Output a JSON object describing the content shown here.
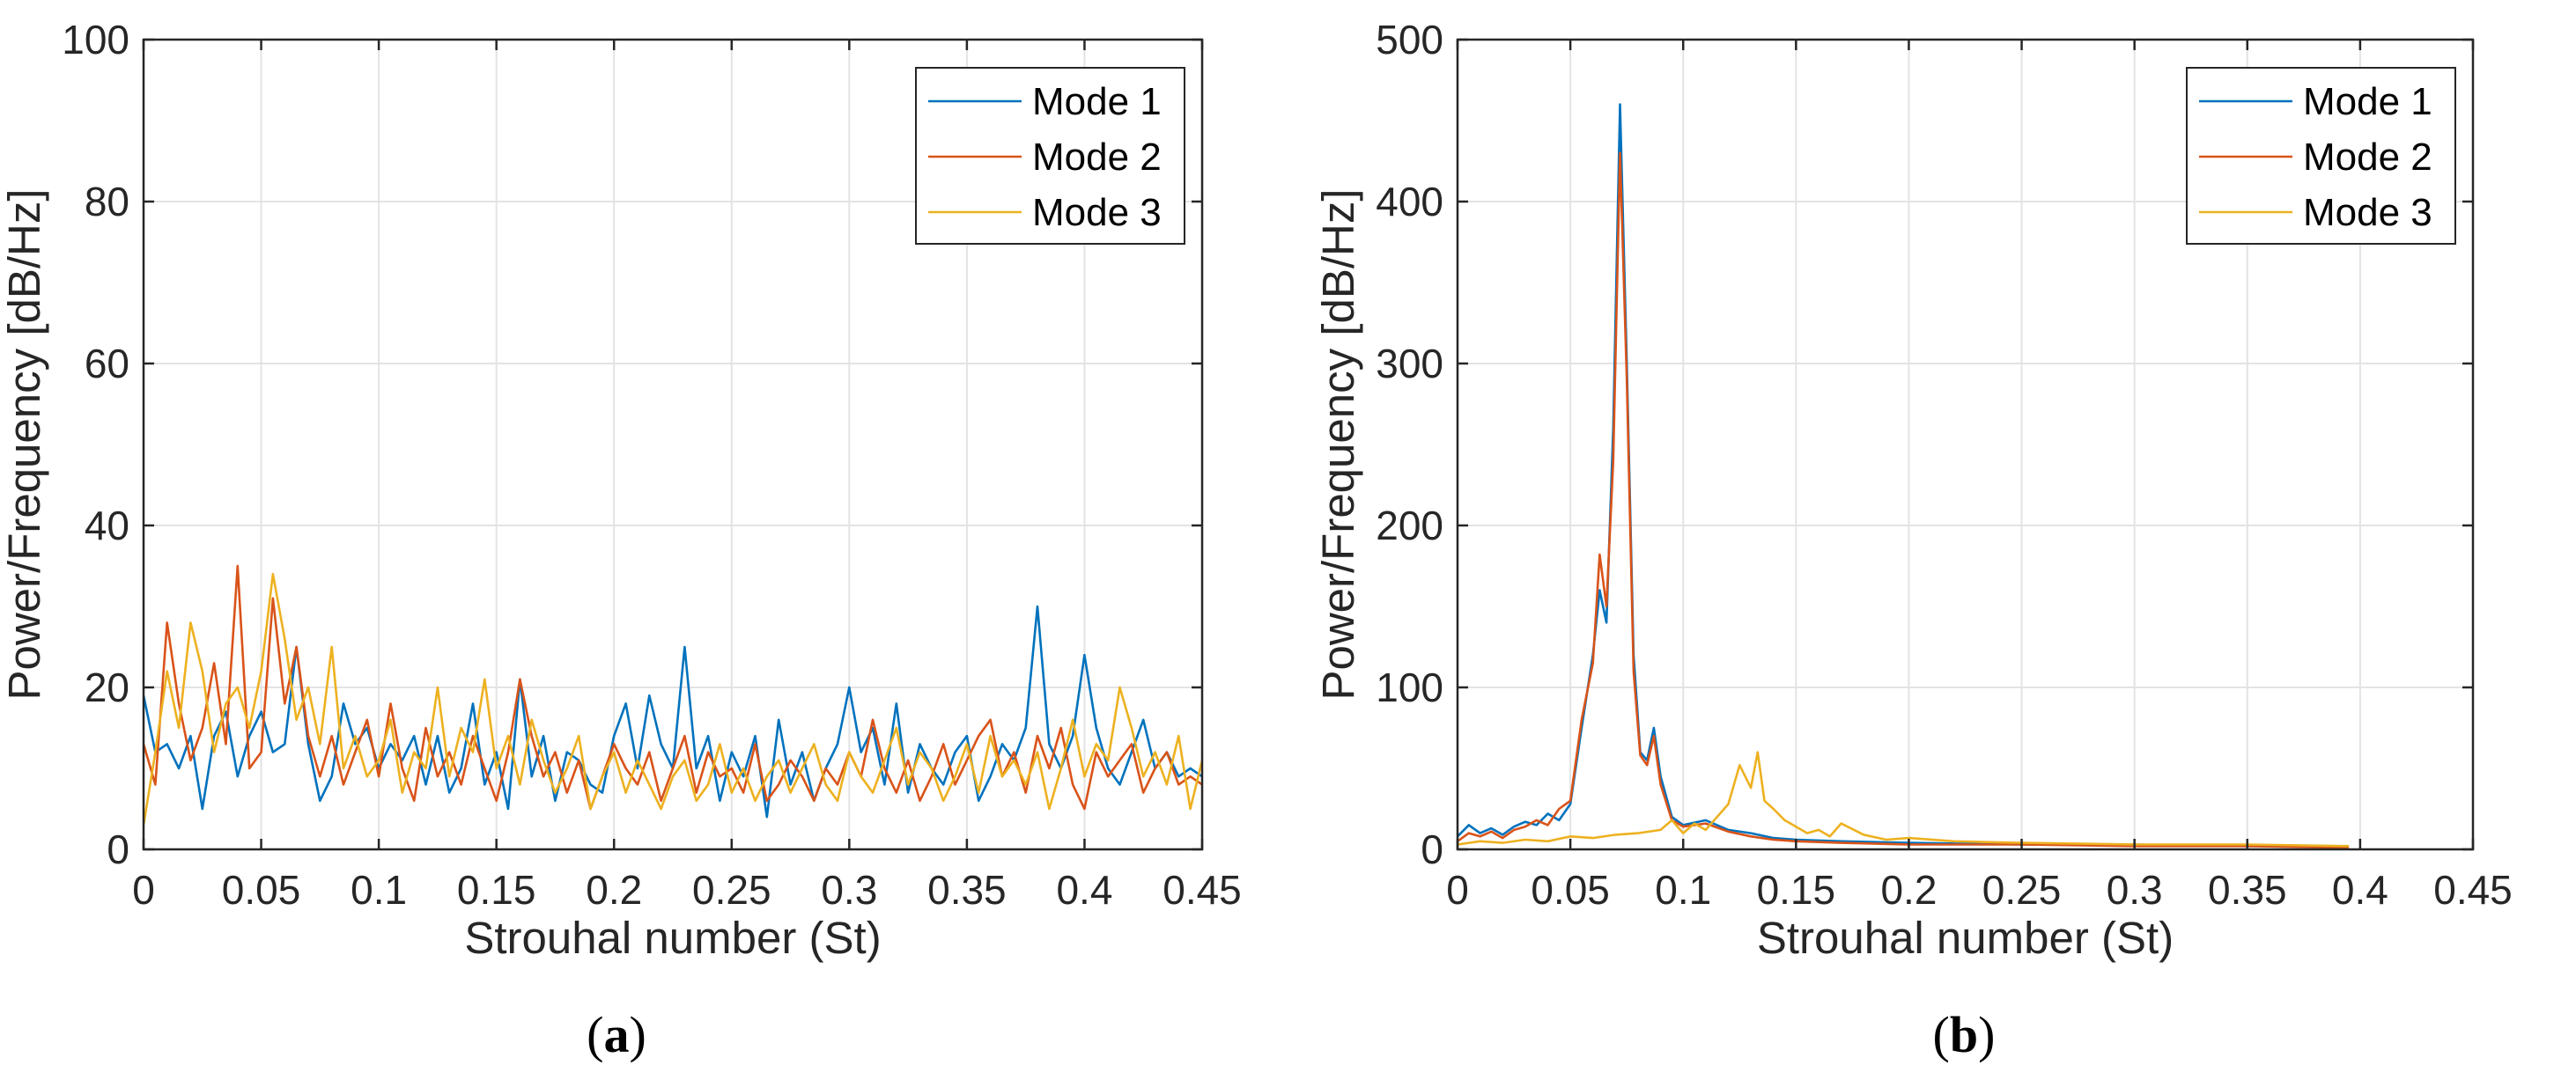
{
  "colors": {
    "mode1": "#0072BD",
    "mode2": "#D95319",
    "mode3": "#EDB120"
  },
  "chart_data": [
    {
      "type": "line",
      "caption_letter": "a",
      "xlabel": "Strouhal number (St)",
      "ylabel": "Power/Frequency [dB/Hz]",
      "xlim": [
        0,
        0.45
      ],
      "ylim": [
        0,
        100
      ],
      "xticks": [
        0,
        0.05,
        0.1,
        0.15,
        0.2,
        0.25,
        0.3,
        0.35,
        0.4,
        0.45
      ],
      "xtick_labels": [
        "0",
        "0.05",
        "0.1",
        "0.15",
        "0.2",
        "0.25",
        "0.3",
        "0.35",
        "0.4",
        "0.45"
      ],
      "yticks": [
        0,
        20,
        40,
        60,
        80,
        100
      ],
      "ytick_labels": [
        "0",
        "20",
        "40",
        "60",
        "80",
        "100"
      ],
      "grid": true,
      "legend_position": "top-right",
      "series": [
        {
          "name": "Mode 1",
          "color_key": "mode1",
          "x": [
            0,
            0.005,
            0.01,
            0.015,
            0.02,
            0.025,
            0.03,
            0.035,
            0.04,
            0.045,
            0.05,
            0.055,
            0.06,
            0.065,
            0.07,
            0.075,
            0.08,
            0.085,
            0.09,
            0.095,
            0.1,
            0.105,
            0.11,
            0.115,
            0.12,
            0.125,
            0.13,
            0.135,
            0.14,
            0.145,
            0.15,
            0.155,
            0.16,
            0.165,
            0.17,
            0.175,
            0.18,
            0.185,
            0.19,
            0.195,
            0.2,
            0.205,
            0.21,
            0.215,
            0.22,
            0.225,
            0.23,
            0.235,
            0.24,
            0.245,
            0.25,
            0.255,
            0.26,
            0.265,
            0.27,
            0.275,
            0.28,
            0.285,
            0.29,
            0.295,
            0.3,
            0.305,
            0.31,
            0.315,
            0.32,
            0.325,
            0.33,
            0.335,
            0.34,
            0.345,
            0.35,
            0.355,
            0.36,
            0.365,
            0.37,
            0.375,
            0.38,
            0.385,
            0.39,
            0.395,
            0.4,
            0.405,
            0.41,
            0.415,
            0.42,
            0.425,
            0.43,
            0.435,
            0.44,
            0.445,
            0.45
          ],
          "y": [
            19,
            12,
            13,
            10,
            14,
            5,
            14,
            17,
            9,
            14,
            17,
            12,
            13,
            25,
            13,
            6,
            9,
            18,
            13,
            15,
            10,
            13,
            11,
            14,
            8,
            14,
            7,
            10,
            18,
            8,
            12,
            5,
            21,
            9,
            14,
            6,
            12,
            11,
            8,
            7,
            14,
            18,
            10,
            19,
            13,
            10,
            25,
            10,
            14,
            6,
            12,
            9,
            14,
            4,
            16,
            8,
            12,
            6,
            10,
            13,
            20,
            12,
            15,
            8,
            18,
            7,
            13,
            10,
            8,
            12,
            14,
            6,
            9,
            13,
            11,
            15,
            30,
            13,
            10,
            14,
            24,
            15,
            10,
            8,
            12,
            16,
            10,
            12,
            9,
            10,
            9
          ]
        },
        {
          "name": "Mode 2",
          "color_key": "mode2",
          "x": [
            0,
            0.005,
            0.01,
            0.015,
            0.02,
            0.025,
            0.03,
            0.035,
            0.04,
            0.045,
            0.05,
            0.055,
            0.06,
            0.065,
            0.07,
            0.075,
            0.08,
            0.085,
            0.09,
            0.095,
            0.1,
            0.105,
            0.11,
            0.115,
            0.12,
            0.125,
            0.13,
            0.135,
            0.14,
            0.145,
            0.15,
            0.155,
            0.16,
            0.165,
            0.17,
            0.175,
            0.18,
            0.185,
            0.19,
            0.195,
            0.2,
            0.205,
            0.21,
            0.215,
            0.22,
            0.225,
            0.23,
            0.235,
            0.24,
            0.245,
            0.25,
            0.255,
            0.26,
            0.265,
            0.27,
            0.275,
            0.28,
            0.285,
            0.29,
            0.295,
            0.3,
            0.305,
            0.31,
            0.315,
            0.32,
            0.325,
            0.33,
            0.335,
            0.34,
            0.345,
            0.35,
            0.355,
            0.36,
            0.365,
            0.37,
            0.375,
            0.38,
            0.385,
            0.39,
            0.395,
            0.4,
            0.405,
            0.41,
            0.415,
            0.42,
            0.425,
            0.43,
            0.435,
            0.44,
            0.445,
            0.45
          ],
          "y": [
            13,
            8,
            28,
            18,
            11,
            15,
            23,
            13,
            35,
            10,
            12,
            31,
            18,
            25,
            14,
            9,
            14,
            8,
            12,
            16,
            9,
            18,
            10,
            6,
            15,
            9,
            12,
            8,
            14,
            10,
            6,
            12,
            21,
            14,
            9,
            12,
            7,
            11,
            5,
            9,
            13,
            10,
            8,
            12,
            6,
            10,
            14,
            7,
            12,
            9,
            10,
            7,
            13,
            6,
            8,
            11,
            9,
            6,
            10,
            8,
            12,
            9,
            16,
            10,
            7,
            11,
            6,
            9,
            13,
            8,
            11,
            14,
            16,
            9,
            12,
            7,
            14,
            10,
            15,
            8,
            5,
            12,
            9,
            11,
            13,
            7,
            10,
            12,
            8,
            9,
            8
          ]
        },
        {
          "name": "Mode 3",
          "color_key": "mode3",
          "x": [
            0,
            0.005,
            0.01,
            0.015,
            0.02,
            0.025,
            0.03,
            0.035,
            0.04,
            0.045,
            0.05,
            0.055,
            0.06,
            0.065,
            0.07,
            0.075,
            0.08,
            0.085,
            0.09,
            0.095,
            0.1,
            0.105,
            0.11,
            0.115,
            0.12,
            0.125,
            0.13,
            0.135,
            0.14,
            0.145,
            0.15,
            0.155,
            0.16,
            0.165,
            0.17,
            0.175,
            0.18,
            0.185,
            0.19,
            0.195,
            0.2,
            0.205,
            0.21,
            0.215,
            0.22,
            0.225,
            0.23,
            0.235,
            0.24,
            0.245,
            0.25,
            0.255,
            0.26,
            0.265,
            0.27,
            0.275,
            0.28,
            0.285,
            0.29,
            0.295,
            0.3,
            0.305,
            0.31,
            0.315,
            0.32,
            0.325,
            0.33,
            0.335,
            0.34,
            0.345,
            0.35,
            0.355,
            0.36,
            0.365,
            0.37,
            0.375,
            0.38,
            0.385,
            0.39,
            0.395,
            0.4,
            0.405,
            0.41,
            0.415,
            0.42,
            0.425,
            0.43,
            0.435,
            0.44,
            0.445,
            0.45
          ],
          "y": [
            3,
            12,
            22,
            15,
            28,
            22,
            12,
            18,
            20,
            15,
            22,
            34,
            26,
            16,
            20,
            13,
            25,
            10,
            14,
            9,
            11,
            16,
            7,
            12,
            10,
            20,
            9,
            15,
            12,
            21,
            10,
            14,
            8,
            16,
            11,
            7,
            10,
            14,
            5,
            9,
            12,
            7,
            11,
            8,
            5,
            9,
            11,
            6,
            8,
            13,
            7,
            10,
            6,
            9,
            11,
            7,
            10,
            13,
            8,
            6,
            12,
            9,
            7,
            11,
            15,
            8,
            12,
            10,
            6,
            9,
            13,
            7,
            14,
            9,
            11,
            8,
            12,
            5,
            10,
            16,
            9,
            13,
            11,
            20,
            15,
            9,
            12,
            8,
            14,
            5,
            11
          ]
        }
      ]
    },
    {
      "type": "line",
      "caption_letter": "b",
      "xlabel": "Strouhal number (St)",
      "ylabel": "Power/Frequency [dB/Hz]",
      "xlim": [
        0,
        0.45
      ],
      "ylim": [
        0,
        500
      ],
      "xticks": [
        0,
        0.05,
        0.1,
        0.15,
        0.2,
        0.25,
        0.3,
        0.35,
        0.4,
        0.45
      ],
      "xtick_labels": [
        "0",
        "0.05",
        "0.1",
        "0.15",
        "0.2",
        "0.25",
        "0.3",
        "0.35",
        "0.4",
        "0.45"
      ],
      "yticks": [
        0,
        100,
        200,
        300,
        400,
        500
      ],
      "ytick_labels": [
        "0",
        "100",
        "200",
        "300",
        "400",
        "500"
      ],
      "grid": true,
      "legend_position": "top-right",
      "series": [
        {
          "name": "Mode 1",
          "color_key": "mode1",
          "x": [
            0,
            0.005,
            0.01,
            0.015,
            0.02,
            0.025,
            0.03,
            0.035,
            0.04,
            0.045,
            0.05,
            0.055,
            0.06,
            0.063,
            0.066,
            0.069,
            0.072,
            0.075,
            0.078,
            0.081,
            0.084,
            0.087,
            0.09,
            0.095,
            0.1,
            0.11,
            0.12,
            0.13,
            0.14,
            0.15,
            0.17,
            0.2,
            0.25,
            0.3,
            0.35,
            0.395
          ],
          "y": [
            8,
            15,
            10,
            13,
            9,
            14,
            17,
            15,
            22,
            18,
            28,
            75,
            120,
            160,
            140,
            260,
            460,
            300,
            120,
            60,
            55,
            75,
            45,
            20,
            15,
            18,
            12,
            10,
            7,
            6,
            5,
            4,
            3,
            3,
            2,
            2
          ]
        },
        {
          "name": "Mode 2",
          "color_key": "mode2",
          "x": [
            0,
            0.005,
            0.01,
            0.015,
            0.02,
            0.025,
            0.03,
            0.035,
            0.04,
            0.045,
            0.05,
            0.055,
            0.06,
            0.063,
            0.066,
            0.069,
            0.072,
            0.075,
            0.078,
            0.081,
            0.084,
            0.087,
            0.09,
            0.095,
            0.1,
            0.11,
            0.12,
            0.13,
            0.14,
            0.15,
            0.17,
            0.2,
            0.25,
            0.3,
            0.35,
            0.395
          ],
          "y": [
            5,
            10,
            8,
            11,
            7,
            12,
            14,
            18,
            15,
            25,
            30,
            80,
            115,
            182,
            150,
            240,
            430,
            290,
            110,
            58,
            52,
            70,
            40,
            18,
            14,
            16,
            11,
            8,
            6,
            5,
            4,
            3,
            3,
            2,
            2,
            1
          ]
        },
        {
          "name": "Mode 3",
          "color_key": "mode3",
          "x": [
            0,
            0.01,
            0.02,
            0.03,
            0.04,
            0.05,
            0.06,
            0.07,
            0.08,
            0.09,
            0.095,
            0.1,
            0.105,
            0.11,
            0.115,
            0.12,
            0.125,
            0.13,
            0.133,
            0.136,
            0.14,
            0.145,
            0.15,
            0.155,
            0.16,
            0.165,
            0.17,
            0.18,
            0.19,
            0.2,
            0.22,
            0.25,
            0.3,
            0.35,
            0.395
          ],
          "y": [
            3,
            5,
            4,
            6,
            5,
            8,
            7,
            9,
            10,
            12,
            18,
            10,
            16,
            12,
            20,
            28,
            52,
            38,
            60,
            30,
            25,
            18,
            14,
            10,
            12,
            8,
            16,
            9,
            6,
            7,
            5,
            4,
            3,
            3,
            2
          ]
        }
      ]
    }
  ]
}
